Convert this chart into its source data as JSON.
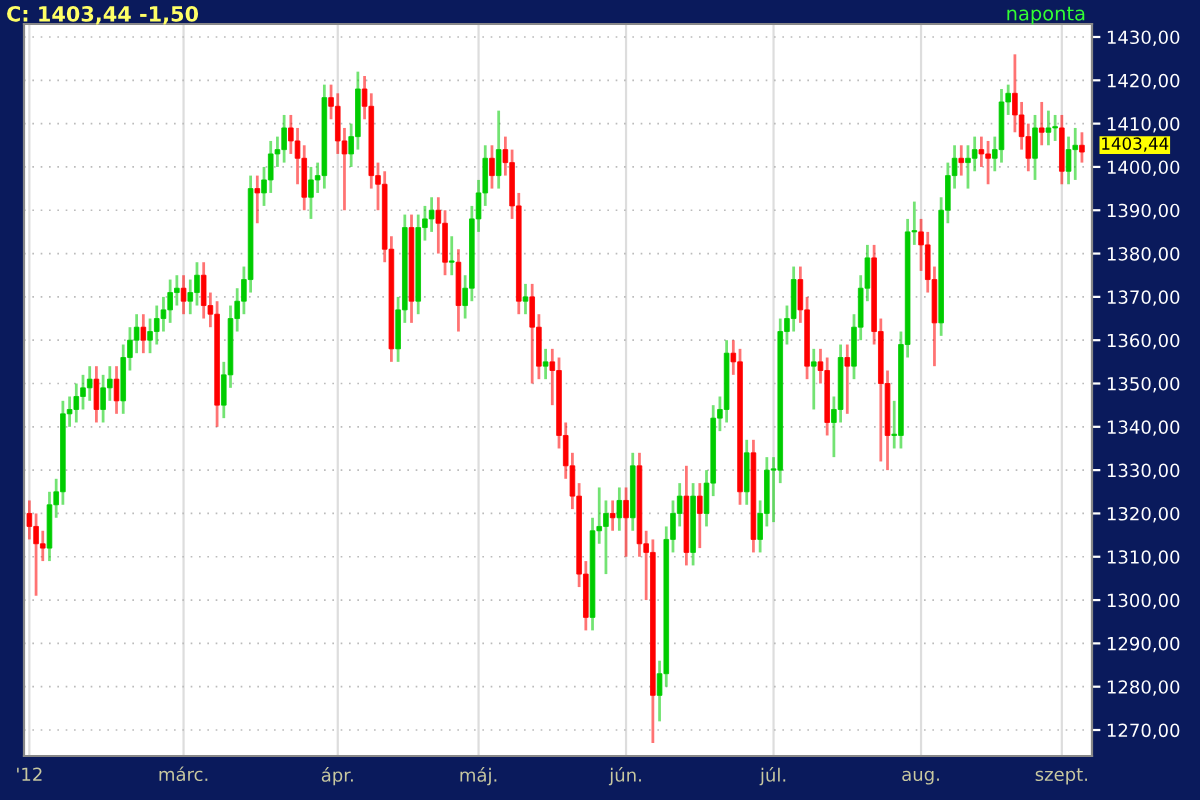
{
  "chart_data": {
    "type": "candlestick",
    "title": "C: 1403,44 -1,50",
    "annotations": [
      "naponta",
      "1403,44"
    ],
    "categories": [
      "'12",
      null,
      null,
      null,
      null,
      null,
      null,
      null,
      null,
      null,
      null,
      null,
      null,
      null,
      null,
      null,
      null,
      null,
      null,
      null,
      null,
      null,
      null,
      "márc.",
      null,
      null,
      null,
      null,
      null,
      null,
      null,
      null,
      null,
      null,
      null,
      null,
      null,
      null,
      null,
      null,
      null,
      null,
      null,
      null,
      null,
      null,
      "ápr.",
      null,
      null,
      null,
      null,
      null,
      null,
      null,
      null,
      null,
      null,
      null,
      null,
      null,
      null,
      null,
      null,
      null,
      null,
      null,
      null,
      "máj.",
      null,
      null,
      null,
      null,
      null,
      null,
      null,
      null,
      null,
      null,
      null,
      null,
      null,
      null,
      null,
      null,
      null,
      null,
      null,
      null,
      null,
      "jún.",
      null,
      null,
      null,
      null,
      null,
      null,
      null,
      null,
      null,
      null,
      null,
      null,
      null,
      null,
      null,
      null,
      null,
      null,
      null,
      null,
      null,
      "júl.",
      null,
      null,
      null,
      null,
      null,
      null,
      null,
      null,
      null,
      null,
      null,
      null,
      null,
      null,
      null,
      null,
      null,
      null,
      null,
      null,
      null,
      "aug.",
      null,
      null,
      null,
      null,
      null,
      null,
      null,
      null,
      null,
      null,
      null,
      null,
      null,
      null,
      null,
      null,
      null,
      null,
      null,
      null,
      "szept.",
      null,
      null,
      null
    ],
    "ohlc": [
      [
        1320,
        1323,
        1314,
        1317
      ],
      [
        1317,
        1320,
        1301,
        1313
      ],
      [
        1313,
        1316,
        1309,
        1312
      ],
      [
        1312,
        1325,
        1309,
        1322
      ],
      [
        1322,
        1328,
        1319,
        1325
      ],
      [
        1325,
        1346,
        1322,
        1343
      ],
      [
        1343,
        1347,
        1340,
        1344
      ],
      [
        1344,
        1350,
        1341,
        1347
      ],
      [
        1347,
        1352,
        1344,
        1349
      ],
      [
        1349,
        1354,
        1346,
        1351
      ],
      [
        1351,
        1354,
        1341,
        1344
      ],
      [
        1344,
        1352,
        1341,
        1349
      ],
      [
        1349,
        1354,
        1346,
        1351
      ],
      [
        1351,
        1354,
        1343,
        1346
      ],
      [
        1346,
        1359,
        1343,
        1356
      ],
      [
        1356,
        1363,
        1353,
        1360
      ],
      [
        1360,
        1366,
        1357,
        1363
      ],
      [
        1363,
        1366,
        1357,
        1360
      ],
      [
        1360,
        1365,
        1357,
        1362
      ],
      [
        1362,
        1368,
        1359,
        1365
      ],
      [
        1365,
        1370,
        1362,
        1367
      ],
      [
        1367,
        1374,
        1364,
        1371
      ],
      [
        1371,
        1375,
        1368,
        1372
      ],
      [
        1372,
        1375,
        1366,
        1369
      ],
      [
        1369,
        1374,
        1366,
        1371
      ],
      [
        1371,
        1378,
        1368,
        1375
      ],
      [
        1375,
        1378,
        1365,
        1368
      ],
      [
        1368,
        1371,
        1363,
        1366
      ],
      [
        1366,
        1369,
        1340,
        1345
      ],
      [
        1345,
        1355,
        1342,
        1352
      ],
      [
        1352,
        1368,
        1349,
        1365
      ],
      [
        1365,
        1372,
        1362,
        1369
      ],
      [
        1369,
        1377,
        1366,
        1374
      ],
      [
        1374,
        1398,
        1371,
        1395
      ],
      [
        1395,
        1398,
        1387,
        1394
      ],
      [
        1394,
        1400,
        1391,
        1397
      ],
      [
        1397,
        1406,
        1394,
        1403
      ],
      [
        1403,
        1407,
        1400,
        1404
      ],
      [
        1404,
        1412,
        1401,
        1409
      ],
      [
        1409,
        1412,
        1403,
        1406
      ],
      [
        1406,
        1409,
        1396,
        1402
      ],
      [
        1402,
        1405,
        1390,
        1393
      ],
      [
        1393,
        1400,
        1388,
        1397
      ],
      [
        1397,
        1401,
        1394,
        1398
      ],
      [
        1398,
        1419,
        1395,
        1416
      ],
      [
        1416,
        1419,
        1411,
        1414
      ],
      [
        1414,
        1417,
        1403,
        1406
      ],
      [
        1406,
        1409,
        1390,
        1403
      ],
      [
        1403,
        1410,
        1400,
        1407
      ],
      [
        1407,
        1422,
        1404,
        1418
      ],
      [
        1418,
        1421,
        1411,
        1414
      ],
      [
        1414,
        1417,
        1395,
        1398
      ],
      [
        1398,
        1401,
        1390,
        1396
      ],
      [
        1396,
        1399,
        1378,
        1381
      ],
      [
        1381,
        1384,
        1355,
        1358
      ],
      [
        1358,
        1370,
        1355,
        1367
      ],
      [
        1367,
        1389,
        1364,
        1386
      ],
      [
        1386,
        1389,
        1364,
        1369
      ],
      [
        1369,
        1389,
        1366,
        1386
      ],
      [
        1386,
        1391,
        1383,
        1388
      ],
      [
        1388,
        1393,
        1385,
        1390
      ],
      [
        1390,
        1393,
        1380,
        1387
      ],
      [
        1387,
        1390,
        1375,
        1378
      ],
      [
        1378,
        1384,
        1375,
        1378
      ],
      [
        1378,
        1381,
        1362,
        1368
      ],
      [
        1368,
        1375,
        1365,
        1372
      ],
      [
        1372,
        1391,
        1369,
        1388
      ],
      [
        1388,
        1397,
        1385,
        1394
      ],
      [
        1394,
        1405,
        1391,
        1402
      ],
      [
        1402,
        1405,
        1395,
        1398
      ],
      [
        1398,
        1413,
        1395,
        1404
      ],
      [
        1404,
        1407,
        1398,
        1401
      ],
      [
        1401,
        1404,
        1388,
        1391
      ],
      [
        1391,
        1394,
        1366,
        1369
      ],
      [
        1369,
        1373,
        1366,
        1370
      ],
      [
        1370,
        1373,
        1350,
        1363
      ],
      [
        1363,
        1366,
        1351,
        1354
      ],
      [
        1354,
        1358,
        1351,
        1355
      ],
      [
        1355,
        1358,
        1345,
        1353
      ],
      [
        1353,
        1356,
        1335,
        1338
      ],
      [
        1338,
        1341,
        1328,
        1331
      ],
      [
        1331,
        1334,
        1321,
        1324
      ],
      [
        1324,
        1327,
        1303,
        1306
      ],
      [
        1306,
        1309,
        1293,
        1296
      ],
      [
        1296,
        1319,
        1293,
        1316
      ],
      [
        1316,
        1326,
        1313,
        1317
      ],
      [
        1317,
        1323,
        1306,
        1320
      ],
      [
        1320,
        1323,
        1316,
        1319
      ],
      [
        1319,
        1326,
        1316,
        1323
      ],
      [
        1323,
        1326,
        1310,
        1319
      ],
      [
        1319,
        1334,
        1316,
        1331
      ],
      [
        1331,
        1334,
        1310,
        1313
      ],
      [
        1313,
        1316,
        1300,
        1311
      ],
      [
        1311,
        1314,
        1267,
        1278
      ],
      [
        1278,
        1286,
        1272,
        1283
      ],
      [
        1283,
        1317,
        1280,
        1314
      ],
      [
        1314,
        1323,
        1311,
        1320
      ],
      [
        1320,
        1327,
        1317,
        1324
      ],
      [
        1324,
        1331,
        1308,
        1311
      ],
      [
        1311,
        1327,
        1308,
        1324
      ],
      [
        1324,
        1327,
        1312,
        1320
      ],
      [
        1320,
        1330,
        1317,
        1327
      ],
      [
        1327,
        1345,
        1324,
        1342
      ],
      [
        1342,
        1347,
        1339,
        1344
      ],
      [
        1344,
        1360,
        1341,
        1357
      ],
      [
        1357,
        1360,
        1352,
        1355
      ],
      [
        1355,
        1358,
        1322,
        1325
      ],
      [
        1325,
        1337,
        1322,
        1334
      ],
      [
        1334,
        1337,
        1311,
        1314
      ],
      [
        1314,
        1323,
        1311,
        1320
      ],
      [
        1320,
        1333,
        1317,
        1330
      ],
      [
        1330,
        1333,
        1318,
        1330
      ],
      [
        1330,
        1365,
        1327,
        1362
      ],
      [
        1362,
        1368,
        1359,
        1365
      ],
      [
        1365,
        1377,
        1362,
        1374
      ],
      [
        1374,
        1377,
        1364,
        1367
      ],
      [
        1367,
        1370,
        1351,
        1354
      ],
      [
        1354,
        1358,
        1344,
        1355
      ],
      [
        1355,
        1358,
        1350,
        1353
      ],
      [
        1353,
        1356,
        1338,
        1341
      ],
      [
        1341,
        1347,
        1333,
        1344
      ],
      [
        1344,
        1359,
        1341,
        1356
      ],
      [
        1356,
        1359,
        1343,
        1354
      ],
      [
        1354,
        1366,
        1351,
        1363
      ],
      [
        1363,
        1375,
        1360,
        1372
      ],
      [
        1372,
        1382,
        1369,
        1379
      ],
      [
        1379,
        1382,
        1359,
        1362
      ],
      [
        1362,
        1365,
        1332,
        1350
      ],
      [
        1350,
        1353,
        1330,
        1338
      ],
      [
        1338,
        1346,
        1335,
        1338
      ],
      [
        1338,
        1362,
        1335,
        1359
      ],
      [
        1359,
        1388,
        1356,
        1385
      ],
      [
        1385,
        1392,
        1382,
        1385
      ],
      [
        1385,
        1388,
        1376,
        1382
      ],
      [
        1382,
        1385,
        1371,
        1374
      ],
      [
        1374,
        1377,
        1354,
        1364
      ],
      [
        1364,
        1393,
        1361,
        1390
      ],
      [
        1390,
        1401,
        1387,
        1398
      ],
      [
        1398,
        1405,
        1395,
        1402
      ],
      [
        1402,
        1405,
        1398,
        1401
      ],
      [
        1401,
        1405,
        1395,
        1402
      ],
      [
        1402,
        1407,
        1399,
        1404
      ],
      [
        1404,
        1407,
        1400,
        1403
      ],
      [
        1403,
        1406,
        1396,
        1402
      ],
      [
        1402,
        1407,
        1399,
        1404
      ],
      [
        1404,
        1418,
        1401,
        1415
      ],
      [
        1415,
        1419,
        1412,
        1417
      ],
      [
        1417,
        1426,
        1408,
        1412
      ],
      [
        1412,
        1415,
        1404,
        1407
      ],
      [
        1407,
        1410,
        1399,
        1402
      ],
      [
        1402,
        1412,
        1397,
        1409
      ],
      [
        1409,
        1415,
        1405,
        1408
      ],
      [
        1408,
        1413,
        1405,
        1409
      ],
      [
        1409,
        1412,
        1406,
        1409
      ],
      [
        1409,
        1412,
        1396,
        1399
      ],
      [
        1399,
        1407,
        1396,
        1404
      ],
      [
        1404,
        1409,
        1397,
        1405
      ],
      [
        1405,
        1408,
        1401,
        1403.44
      ]
    ],
    "ylim": [
      1264,
      1433
    ],
    "yticks": [
      {
        "value": 1270,
        "label": "1270,00"
      },
      {
        "value": 1280,
        "label": "1280,00"
      },
      {
        "value": 1290,
        "label": "1290,00"
      },
      {
        "value": 1300,
        "label": "1300,00"
      },
      {
        "value": 1310,
        "label": "1310,00"
      },
      {
        "value": 1320,
        "label": "1320,00"
      },
      {
        "value": 1330,
        "label": "1330,00"
      },
      {
        "value": 1340,
        "label": "1340,00"
      },
      {
        "value": 1350,
        "label": "1350,00"
      },
      {
        "value": 1360,
        "label": "1360,00"
      },
      {
        "value": 1370,
        "label": "1370,00"
      },
      {
        "value": 1380,
        "label": "1380,00"
      },
      {
        "value": 1390,
        "label": "1390,00"
      },
      {
        "value": 1400,
        "label": "1400,00"
      },
      {
        "value": 1410,
        "label": "1410,00"
      },
      {
        "value": 1420,
        "label": "1420,00"
      },
      {
        "value": 1430,
        "label": "1430,00"
      }
    ],
    "grid": true
  }
}
